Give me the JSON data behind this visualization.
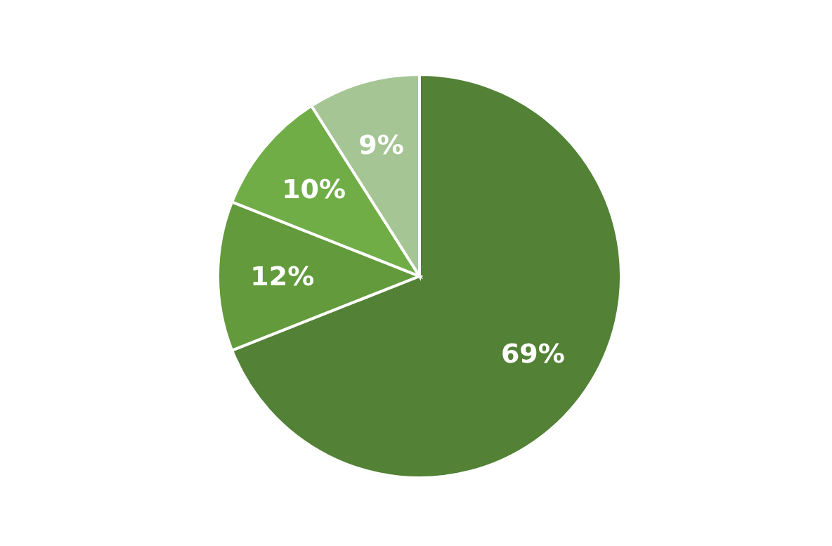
{
  "chart_data": {
    "type": "pie",
    "categories": [
      null,
      null,
      null,
      null
    ],
    "values": [
      69,
      12,
      10,
      9
    ],
    "colors": [
      "#538135",
      "#639a3c",
      "#70ad47",
      "#a5c594"
    ],
    "value_labels": [
      "69%",
      "12%",
      "10%",
      "9%"
    ]
  }
}
